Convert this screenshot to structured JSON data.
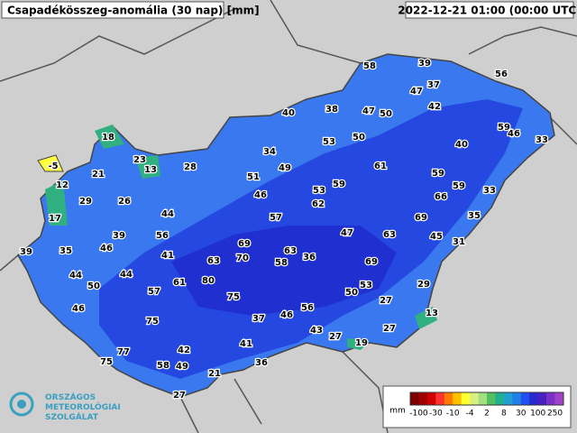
{
  "header": {
    "title": "Csapadékösszeg-anomália (30 nap) [mm]",
    "timestamp": "2022-12-21 01:00 (00:00 UTC)"
  },
  "stations": [
    58,
    39,
    56,
    47,
    37,
    42,
    40,
    38,
    47,
    50,
    59,
    46,
    33,
    53,
    50,
    40,
    18,
    34,
    23,
    13,
    28,
    49,
    61,
    59,
    -5,
    21,
    51,
    53,
    59,
    59,
    33,
    12,
    29,
    26,
    46,
    62,
    66,
    44,
    57,
    69,
    35,
    17,
    39,
    35,
    46,
    39,
    56,
    47,
    63,
    45,
    31,
    69,
    41,
    63,
    70,
    63,
    36,
    58,
    69,
    44,
    44,
    50,
    61,
    80,
    57,
    50,
    53,
    29,
    75,
    27,
    46,
    56,
    46,
    37,
    13,
    75,
    27,
    43,
    27,
    19,
    41,
    42,
    77,
    75,
    58,
    49,
    36,
    21,
    27
  ],
  "legend": {
    "unit": "mm",
    "labels": [
      -100,
      -30,
      -10,
      -4,
      2,
      8,
      30,
      100,
      250
    ],
    "colors": [
      "#7a0000",
      "#a00000",
      "#d00000",
      "#ff3030",
      "#ff7a00",
      "#ffc000",
      "#ffff30",
      "#d8f080",
      "#a0e080",
      "#50c060",
      "#20b090",
      "#20a0d0",
      "#2080e8",
      "#2050f0",
      "#2828d0",
      "#4820c0",
      "#7a30c8",
      "#a040c8"
    ]
  },
  "logo": {
    "lines": [
      "ORSZÁGOS",
      "METEOROLÓGIAI",
      "SZOLGÁLAT"
    ]
  }
}
